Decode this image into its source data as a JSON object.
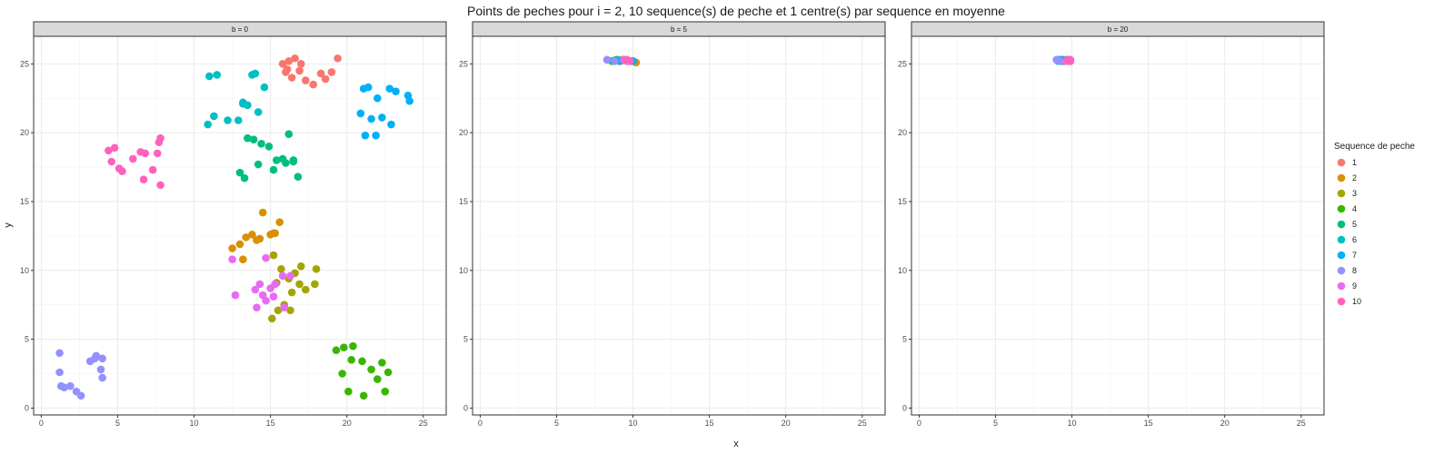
{
  "chart_data": {
    "type": "scatter",
    "title": "Points de peches pour i = 2, 10 sequence(s) de peche et 1 centre(s) par sequence en moyenne",
    "xlabel": "x",
    "ylabel": "y",
    "xlim": [
      -0.5,
      26.5
    ],
    "ylim": [
      -0.5,
      27
    ],
    "xticks": [
      0,
      5,
      10,
      15,
      20,
      25
    ],
    "yticks": [
      0,
      5,
      10,
      15,
      20,
      25
    ],
    "grid": true,
    "legend": {
      "title": "Sequence de peche",
      "placement": "right",
      "entries": [
        "1",
        "2",
        "3",
        "4",
        "5",
        "6",
        "7",
        "8",
        "9",
        "10"
      ]
    },
    "series_colors": [
      "#F8766D",
      "#D89000",
      "#A3A500",
      "#39B600",
      "#00BF7D",
      "#00BFC4",
      "#00B0F6",
      "#9590FF",
      "#E76BF3",
      "#FF62BC"
    ],
    "panels": [
      {
        "strip": "b = 0",
        "series": [
          {
            "name": "1",
            "x": [
              15.8,
              16.2,
              16.6,
              17.0,
              16.0,
              16.4,
              17.3,
              17.8,
              18.3,
              18.6,
              19.0,
              19.4,
              16.1,
              16.9
            ],
            "y": [
              25.0,
              25.2,
              25.4,
              25.0,
              24.4,
              24.0,
              23.8,
              23.5,
              24.3,
              23.9,
              24.4,
              25.4,
              24.6,
              24.5
            ]
          },
          {
            "name": "2",
            "x": [
              12.5,
              13.0,
              13.4,
              13.8,
              14.3,
              14.5,
              15.0,
              15.3,
              15.6,
              13.2,
              14.1,
              15.2
            ],
            "y": [
              11.6,
              11.9,
              12.4,
              12.6,
              12.3,
              14.2,
              12.6,
              12.7,
              13.5,
              10.8,
              12.2,
              12.7
            ]
          },
          {
            "name": "3",
            "x": [
              15.2,
              15.7,
              16.2,
              16.6,
              17.0,
              17.3,
              18.0,
              15.5,
              15.9,
              16.4,
              16.9,
              15.1,
              15.4,
              16.3,
              17.9
            ],
            "y": [
              11.1,
              10.1,
              9.4,
              9.8,
              10.3,
              8.6,
              10.1,
              7.1,
              7.5,
              8.4,
              9.0,
              6.5,
              9.1,
              7.1,
              9.0
            ]
          },
          {
            "name": "4",
            "x": [
              19.3,
              19.8,
              20.4,
              21.0,
              21.6,
              22.3,
              22.7,
              20.1,
              21.1,
              22.0,
              19.7,
              22.5,
              20.3
            ],
            "y": [
              4.2,
              4.4,
              4.5,
              3.4,
              2.8,
              3.3,
              2.6,
              1.2,
              0.9,
              2.1,
              2.5,
              1.2,
              3.5
            ]
          },
          {
            "name": "5",
            "x": [
              13.5,
              13.9,
              14.4,
              14.9,
              15.4,
              16.0,
              16.5,
              16.8,
              13.0,
              13.3,
              15.8,
              16.2,
              14.2,
              15.2,
              16.5
            ],
            "y": [
              19.6,
              19.5,
              19.2,
              19.0,
              18.0,
              17.8,
              18.0,
              16.8,
              17.1,
              16.7,
              18.1,
              19.9,
              17.7,
              17.3,
              17.9
            ]
          },
          {
            "name": "6",
            "x": [
              11.0,
              11.5,
              13.2,
              13.8,
              14.0,
              14.6,
              11.3,
              12.2,
              12.9,
              13.5,
              14.2,
              10.9,
              13.2
            ],
            "y": [
              24.1,
              24.2,
              22.2,
              24.2,
              24.3,
              23.3,
              21.2,
              20.9,
              20.9,
              22.0,
              21.5,
              20.6,
              22.1
            ]
          },
          {
            "name": "7",
            "x": [
              21.1,
              21.4,
              22.0,
              22.8,
              23.2,
              24.0,
              20.9,
              21.6,
              22.3,
              21.2,
              21.9,
              22.9,
              24.1
            ],
            "y": [
              23.2,
              23.3,
              22.5,
              23.2,
              23.0,
              22.7,
              21.4,
              21.0,
              21.1,
              19.8,
              19.8,
              20.6,
              22.3
            ]
          },
          {
            "name": "8",
            "x": [
              1.2,
              1.3,
              1.5,
              1.9,
              2.3,
              2.6,
              3.2,
              3.6,
              4.0,
              3.9,
              4.0,
              3.5,
              1.2
            ],
            "y": [
              4.0,
              1.6,
              1.5,
              1.6,
              1.2,
              0.9,
              3.4,
              3.8,
              3.6,
              2.8,
              2.2,
              3.6,
              2.6
            ]
          },
          {
            "name": "9",
            "x": [
              12.5,
              12.7,
              14.0,
              14.3,
              14.7,
              15.3,
              15.8,
              16.3,
              14.1,
              14.7,
              15.2,
              15.9,
              14.5,
              15.0
            ],
            "y": [
              10.8,
              8.2,
              8.6,
              9.0,
              10.9,
              9.0,
              9.6,
              9.6,
              7.3,
              7.8,
              8.1,
              7.3,
              8.2,
              8.7
            ]
          },
          {
            "name": "10",
            "x": [
              4.4,
              4.8,
              4.6,
              5.1,
              5.3,
              6.0,
              6.5,
              6.8,
              6.7,
              7.3,
              7.6,
              7.7,
              7.8,
              7.8
            ],
            "y": [
              18.7,
              18.9,
              17.9,
              17.4,
              17.2,
              18.1,
              18.6,
              18.5,
              16.6,
              17.3,
              18.5,
              19.3,
              19.6,
              16.2
            ]
          }
        ]
      },
      {
        "strip": "b = 5",
        "series": [
          {
            "name": "1",
            "x": [
              9.2,
              9.6
            ],
            "y": [
              25.2,
              25.3
            ]
          },
          {
            "name": "2",
            "x": [
              9.8,
              10.2
            ],
            "y": [
              25.2,
              25.1
            ]
          },
          {
            "name": "3",
            "x": [
              8.6,
              9.3
            ],
            "y": [
              25.2,
              25.3
            ]
          },
          {
            "name": "4",
            "x": [
              8.9,
              9.9
            ],
            "y": [
              25.3,
              25.2
            ]
          },
          {
            "name": "5",
            "x": [
              8.7,
              9.5
            ],
            "y": [
              25.2,
              25.3
            ]
          },
          {
            "name": "6",
            "x": [
              9.0,
              9.7
            ],
            "y": [
              25.3,
              25.2
            ]
          },
          {
            "name": "7",
            "x": [
              9.1,
              10.0
            ],
            "y": [
              25.2,
              25.2
            ]
          },
          {
            "name": "8",
            "x": [
              8.3,
              8.8
            ],
            "y": [
              25.3,
              25.2
            ]
          },
          {
            "name": "9",
            "x": [
              9.4,
              9.6
            ],
            "y": [
              25.3,
              25.2
            ]
          },
          {
            "name": "10",
            "x": [
              9.5,
              9.8
            ],
            "y": [
              25.3,
              25.2
            ]
          }
        ]
      },
      {
        "strip": "b = 20",
        "series": [
          {
            "name": "1",
            "x": [
              9.4,
              9.6
            ],
            "y": [
              25.3,
              25.3
            ]
          },
          {
            "name": "2",
            "x": [
              9.8,
              9.9
            ],
            "y": [
              25.2,
              25.2
            ]
          },
          {
            "name": "3",
            "x": [
              9.3,
              9.7
            ],
            "y": [
              25.2,
              25.3
            ]
          },
          {
            "name": "4",
            "x": [
              9.5,
              9.8
            ],
            "y": [
              25.2,
              25.3
            ]
          },
          {
            "name": "5",
            "x": [
              9.2,
              9.5
            ],
            "y": [
              25.3,
              25.2
            ]
          },
          {
            "name": "6",
            "x": [
              9.0,
              9.3
            ],
            "y": [
              25.3,
              25.3
            ]
          },
          {
            "name": "7",
            "x": [
              9.1,
              9.4
            ],
            "y": [
              25.2,
              25.3
            ]
          },
          {
            "name": "8",
            "x": [
              9.0,
              9.2
            ],
            "y": [
              25.3,
              25.2
            ]
          },
          {
            "name": "9",
            "x": [
              9.6,
              9.9
            ],
            "y": [
              25.2,
              25.3
            ]
          },
          {
            "name": "10",
            "x": [
              9.7,
              9.9
            ],
            "y": [
              25.3,
              25.2
            ]
          }
        ]
      }
    ]
  }
}
